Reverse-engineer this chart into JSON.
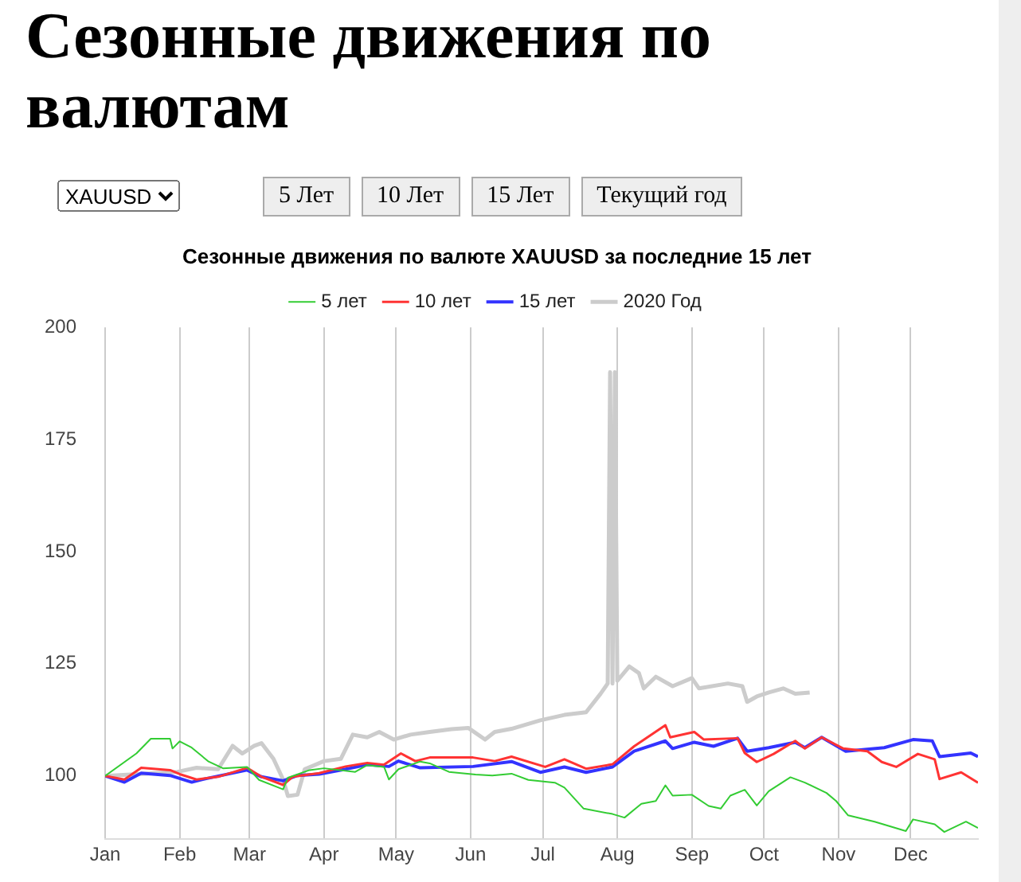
{
  "chart_data": {
    "type": "line",
    "title": "Сезонные движения по валютам",
    "subtitle": "Сезонные движения по валюте XAUUSD за последние 15 лет",
    "annotations": [
      "XAUUSD",
      "5 Лет",
      "10 Лет",
      "15 Лет",
      "Текущий год"
    ],
    "xlim": [
      "--01-01",
      "--12-29"
    ],
    "xticks": [
      {
        "value": "--01-01",
        "label": "Jan"
      },
      {
        "value": "--02-01",
        "label": "Feb"
      },
      {
        "value": "--03-01",
        "label": "Mar"
      },
      {
        "value": "--04-01",
        "label": "Apr"
      },
      {
        "value": "--05-01",
        "label": "May"
      },
      {
        "value": "--06-01",
        "label": "Jun"
      },
      {
        "value": "--07-01",
        "label": "Jul"
      },
      {
        "value": "--08-01",
        "label": "Aug"
      },
      {
        "value": "--09-01",
        "label": "Sep"
      },
      {
        "value": "--10-01",
        "label": "Oct"
      },
      {
        "value": "--11-01",
        "label": "Nov"
      },
      {
        "value": "--12-01",
        "label": "Dec"
      }
    ],
    "ylim": [
      86,
      200
    ],
    "yticks": [
      100,
      125,
      150,
      175,
      200
    ],
    "grid": "x",
    "legend": "top",
    "marker": "none",
    "series": [
      {
        "name": "5 лет",
        "color": "#33cc33",
        "x": [
          "--01-01",
          "--01-14",
          "--01-20",
          "--01-28",
          "--01-29",
          "--02-01",
          "--02-06",
          "--02-13",
          "--02-19",
          "--02-29",
          "--03-05",
          "--03-15",
          "--03-17",
          "--03-26",
          "--04-01",
          "--04-14",
          "--04-19",
          "--04-26",
          "--04-28",
          "--05-02",
          "--05-11",
          "--05-15",
          "--05-23",
          "--06-03",
          "--06-10",
          "--06-18",
          "--06-25",
          "--07-06",
          "--07-10",
          "--07-18",
          "--07-30",
          "--08-04",
          "--08-11",
          "--08-17",
          "--08-21",
          "--08-24",
          "--09-01",
          "--09-08",
          "--09-13",
          "--09-17",
          "--09-23",
          "--09-28",
          "--10-03",
          "--10-12",
          "--10-18",
          "--10-27",
          "--10-31",
          "--11-05",
          "--11-16",
          "--11-29",
          "--12-02",
          "--12-11",
          "--12-15",
          "--12-24",
          "--12-29"
        ],
        "values": [
          100,
          105,
          108.3,
          108.3,
          106.1,
          107.7,
          106.3,
          103.2,
          101.7,
          102,
          99.1,
          97,
          99.6,
          101.3,
          101.7,
          100.9,
          102.4,
          102,
          99.2,
          101.5,
          103.2,
          102.8,
          100.9,
          100.3,
          100.1,
          100.5,
          99.1,
          98.5,
          97.4,
          92.7,
          91.5,
          90.7,
          93.8,
          94.4,
          97.9,
          95.6,
          95.8,
          93.3,
          92.7,
          95.6,
          96.9,
          93.4,
          96.6,
          99.7,
          98.5,
          96.2,
          94.4,
          91.2,
          89.8,
          87.7,
          90.3,
          89.2,
          87.5,
          89.8,
          88.4
        ]
      },
      {
        "name": "10 лет",
        "color": "#ff3333",
        "x": [
          "--01-01",
          "--01-09",
          "--01-16",
          "--01-28",
          "--02-01",
          "--02-08",
          "--02-17",
          "--02-29",
          "--03-06",
          "--03-15",
          "--03-19",
          "--03-30",
          "--04-10",
          "--04-19",
          "--04-26",
          "--05-03",
          "--05-09",
          "--05-15",
          "--06-02",
          "--06-11",
          "--06-18",
          "--07-02",
          "--07-10",
          "--07-19",
          "--07-30",
          "--08-08",
          "--08-21",
          "--08-23",
          "--09-02",
          "--09-06",
          "--09-20",
          "--09-23",
          "--09-28",
          "--10-05",
          "--10-14",
          "--10-18",
          "--10-25",
          "--11-03",
          "--11-13",
          "--11-19",
          "--11-25",
          "--12-04",
          "--12-11",
          "--12-13",
          "--12-22",
          "--12-29"
        ],
        "values": [
          100,
          99.2,
          101.8,
          101.3,
          100.4,
          99.2,
          99.8,
          101.8,
          99.8,
          98,
          99.8,
          100.6,
          102.1,
          102.9,
          102.5,
          105,
          103.3,
          104.1,
          104.1,
          103.3,
          104.3,
          102,
          103.7,
          101.6,
          102.6,
          106.6,
          111.3,
          108.6,
          109.8,
          108.1,
          108.4,
          105.1,
          103.1,
          104.9,
          107.8,
          106.1,
          108.6,
          106.1,
          105.5,
          103.1,
          102,
          104.9,
          103.7,
          99.3,
          100.8,
          98.5
        ]
      },
      {
        "name": "15 лет",
        "color": "#3333ff",
        "x": [
          "--01-01",
          "--01-09",
          "--01-16",
          "--01-28",
          "--02-06",
          "--02-12",
          "--02-29",
          "--03-06",
          "--03-15",
          "--03-21",
          "--03-30",
          "--04-10",
          "--04-19",
          "--04-28",
          "--05-02",
          "--05-11",
          "--06-02",
          "--06-18",
          "--06-30",
          "--07-10",
          "--07-19",
          "--07-30",
          "--08-08",
          "--08-21",
          "--08-24",
          "--09-02",
          "--09-10",
          "--09-20",
          "--09-24",
          "--10-03",
          "--10-14",
          "--10-18",
          "--10-25",
          "--11-04",
          "--11-20",
          "--12-02",
          "--12-10",
          "--12-13",
          "--12-26",
          "--12-29"
        ],
        "values": [
          100,
          98.6,
          100.6,
          100.1,
          98.6,
          99.4,
          101.3,
          99.8,
          98.9,
          100.1,
          100.4,
          101.5,
          102.5,
          102.1,
          103.3,
          101.8,
          102.1,
          103.2,
          100.8,
          102,
          100.8,
          102,
          105.5,
          107.8,
          106.1,
          107.5,
          106.6,
          108.4,
          105.5,
          106.3,
          107.5,
          106.3,
          108.6,
          105.5,
          106.3,
          108.1,
          107.8,
          104.3,
          105.1,
          104.3
        ]
      },
      {
        "name": "2020 Год",
        "color": "#cccccc",
        "x": [
          "--01-01",
          "--01-31",
          "--02-08",
          "--02-17",
          "--02-23",
          "--02-27",
          "--03-03",
          "--03-06",
          "--03-11",
          "--03-15",
          "--03-17",
          "--03-21",
          "--03-24",
          "--03-28",
          "--04-01",
          "--04-08",
          "--04-13",
          "--04-19",
          "--04-24",
          "--04-30",
          "--05-07",
          "--05-15",
          "--05-24",
          "--05-31",
          "--06-07",
          "--06-11",
          "--06-18",
          "--06-30",
          "--07-10",
          "--07-19",
          "--07-25",
          "--07-28",
          "--07-29",
          "--07-30",
          "--07-31",
          "--08-01",
          "--08-06",
          "--08-10",
          "--08-12",
          "--08-17",
          "--08-24",
          "--09-01",
          "--09-04",
          "--09-16",
          "--09-22",
          "--09-24",
          "--09-28",
          "--10-03",
          "--10-09",
          "--10-14",
          "--10-20"
        ],
        "values": [
          100,
          100.9,
          101.8,
          101.5,
          106.7,
          105,
          106.7,
          107.3,
          103.8,
          99.2,
          95.5,
          95.8,
          101.5,
          102.4,
          103.3,
          103.8,
          109.2,
          108.6,
          109.8,
          108.1,
          109.2,
          109.8,
          110.4,
          110.7,
          108.1,
          109.8,
          110.5,
          112.4,
          113.6,
          114.2,
          118.3,
          120.6,
          190,
          120.6,
          190,
          121.2,
          124.4,
          122.9,
          119.5,
          122.1,
          120,
          121.8,
          119.5,
          120.6,
          120,
          116.5,
          117.7,
          118.6,
          119.5,
          118.3,
          118.6
        ]
      }
    ]
  }
}
